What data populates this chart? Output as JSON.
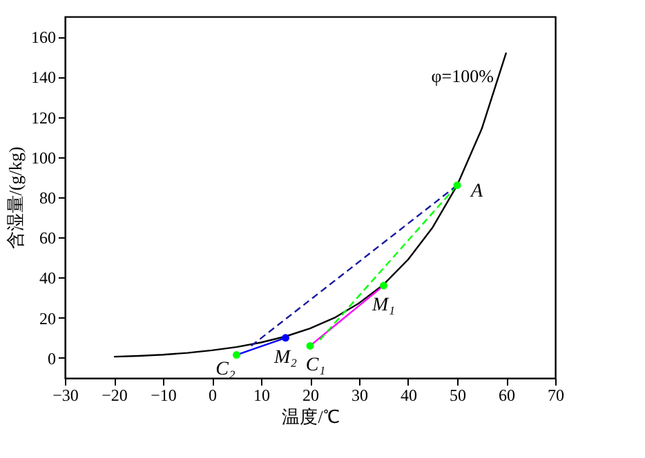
{
  "chart_data": {
    "type": "line",
    "xlabel": "温度/℃",
    "ylabel": "含湿量/(g/kg)",
    "xlim": [
      -30,
      70
    ],
    "xticks": [
      -30,
      -20,
      -10,
      0,
      10,
      20,
      30,
      40,
      50,
      60,
      70
    ],
    "ylim": [
      -10,
      170
    ],
    "yticks": [
      0,
      20,
      40,
      60,
      80,
      100,
      120,
      140,
      160
    ],
    "grid": false,
    "series": [
      {
        "color": "#000000",
        "line_style": "solid",
        "marker": "none",
        "x": [
          -20,
          -15,
          -10,
          -5,
          0,
          5,
          10,
          15,
          20,
          25,
          30,
          35,
          40,
          45,
          50,
          55,
          60
        ],
        "values": [
          0.6,
          1.0,
          1.6,
          2.5,
          3.8,
          5.4,
          7.7,
          10.7,
          14.7,
          20.0,
          27.3,
          36.6,
          49.0,
          65.0,
          86.0,
          114.0,
          152.0
        ]
      },
      {
        "color": "#ff00ff",
        "line_style": "solid",
        "marker": "none",
        "x": [
          20,
          35
        ],
        "values": [
          6,
          36
        ]
      },
      {
        "color": "#00ff00",
        "line_style": "dashed",
        "marker": "none",
        "x": [
          22,
          50
        ],
        "values": [
          9,
          86
        ]
      },
      {
        "color": "#0000ff",
        "line_style": "solid",
        "marker": "none",
        "x": [
          5,
          15
        ],
        "values": [
          1.5,
          10
        ]
      },
      {
        "color": "#1a1aa0",
        "line_style": "dashed",
        "marker": "none",
        "x": [
          8,
          50
        ],
        "values": [
          6,
          86
        ]
      },
      {
        "type": "scatter",
        "color": "#00ff00",
        "marker": "circle",
        "x": [
          50,
          35,
          20,
          5
        ],
        "values": [
          86,
          36,
          6,
          1.5
        ]
      },
      {
        "type": "scatter",
        "color": "#0000ff",
        "marker": "circle",
        "x": [
          15
        ],
        "values": [
          10
        ]
      }
    ],
    "annotations": [
      {
        "text": "φ=100%",
        "x": 58,
        "y": 140
      },
      {
        "text": "A",
        "x": 50,
        "y": 86
      },
      {
        "text": "M₁",
        "x": 35,
        "y": 36
      },
      {
        "text": "C₁",
        "x": 20,
        "y": 6
      },
      {
        "text": "M₂",
        "x": 15,
        "y": 10
      },
      {
        "text": "C₂",
        "x": 5,
        "y": 1.5
      }
    ]
  }
}
